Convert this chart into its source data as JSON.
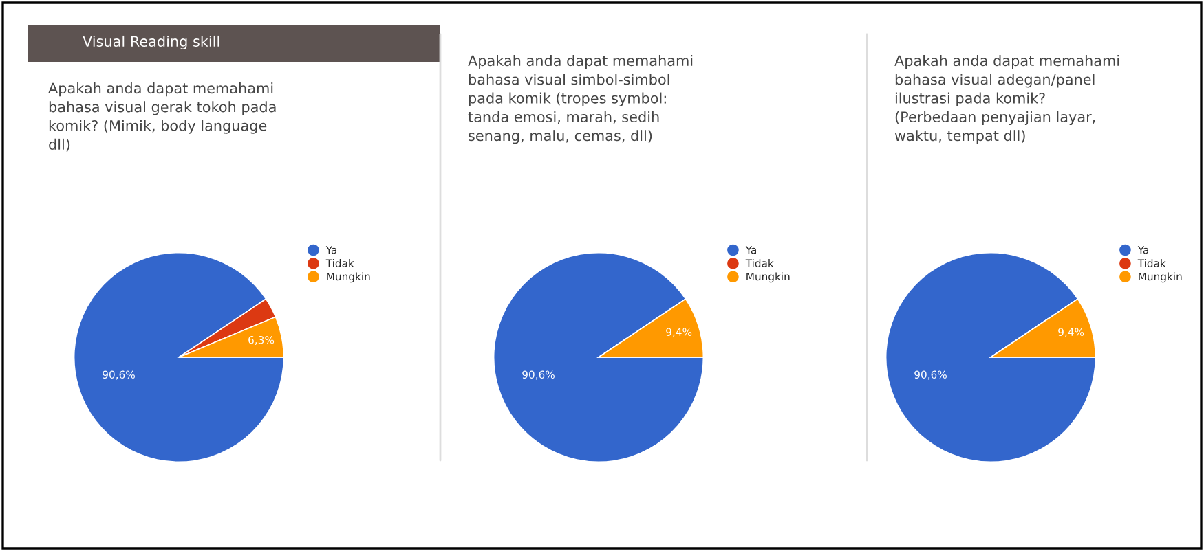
{
  "chart_data": [
    {
      "type": "pie",
      "annotations": [
        "Visual Reading skill"
      ],
      "title": "Apakah anda dapat memahami\nbahasa visual gerak tokoh pada\nkomik? (Mimik, body language\ndll)",
      "categories": [
        "Ya",
        "Tidak",
        "Mungkin"
      ],
      "values": [
        90.6,
        3.1,
        6.3
      ],
      "value_labels": [
        "90,6%",
        null,
        "6,3%"
      ],
      "colors": [
        "#3366cc",
        "#dc3912",
        "#ff9900"
      ],
      "legend": "right"
    },
    {
      "type": "pie",
      "title": "Apakah anda dapat memahami\nbahasa visual simbol-simbol\npada komik (tropes symbol:\ntanda emosi, marah, sedih\nsenang, malu, cemas, dll)",
      "categories": [
        "Ya",
        "Tidak",
        "Mungkin"
      ],
      "values": [
        90.6,
        0,
        9.4
      ],
      "value_labels": [
        "90,6%",
        null,
        "9,4%"
      ],
      "colors": [
        "#3366cc",
        "#dc3912",
        "#ff9900"
      ],
      "legend": "right"
    },
    {
      "type": "pie",
      "title": "Apakah anda dapat memahami\nbahasa visual adegan/panel\nilustrasi pada komik?\n(Perbedaan penyajian layar,\nwaktu, tempat dll)",
      "categories": [
        "Ya",
        "Tidak",
        "Mungkin"
      ],
      "values": [
        90.6,
        0,
        9.4
      ],
      "value_labels": [
        "90,6%",
        null,
        "9,4%"
      ],
      "colors": [
        "#3366cc",
        "#dc3912",
        "#ff9900"
      ],
      "legend": "right"
    }
  ]
}
